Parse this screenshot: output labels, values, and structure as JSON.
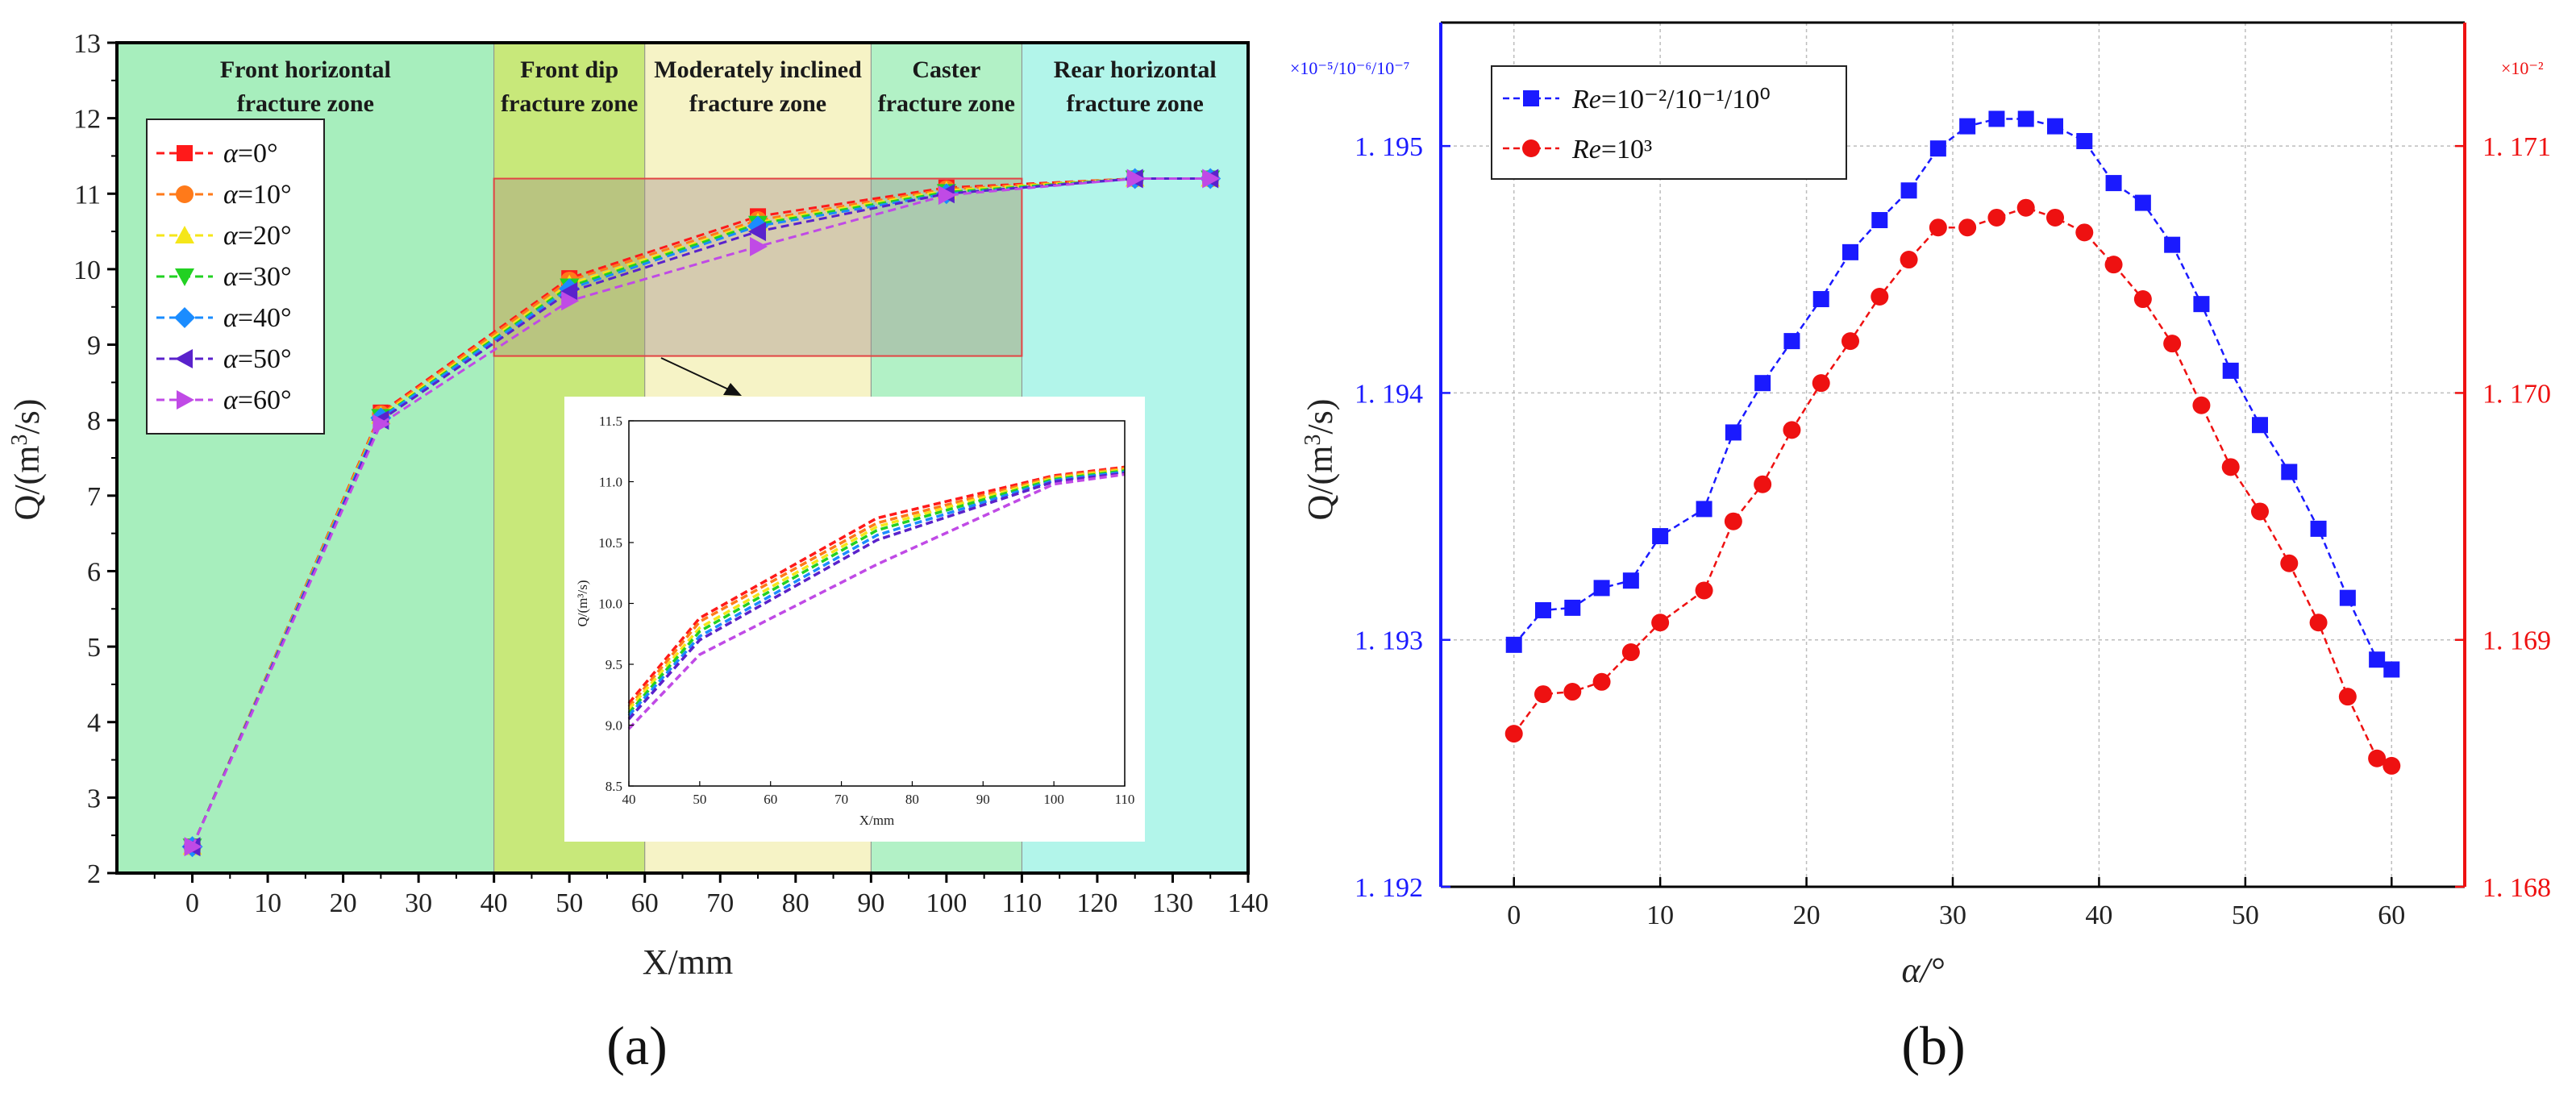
{
  "chart_data": [
    {
      "panel": "a",
      "type": "line",
      "panel_label": "(a)",
      "xlabel": "X/mm",
      "ylabel": "Q/(m³/s)",
      "xlim": [
        -10,
        140
      ],
      "ylim": [
        2,
        13
      ],
      "xticks": [
        0,
        10,
        20,
        30,
        40,
        50,
        60,
        70,
        80,
        90,
        100,
        110,
        120,
        130,
        140
      ],
      "yticks": [
        2,
        3,
        4,
        5,
        6,
        7,
        8,
        9,
        10,
        11,
        12,
        13
      ],
      "zones": [
        {
          "name": "Front horizontal fracture zone",
          "line1": "Front horizontal",
          "line2": "fracture zone",
          "x0": -10,
          "x1": 40,
          "color": "#a7eebd"
        },
        {
          "name": "Front dip fracture zone",
          "line1": "Front dip",
          "line2": "fracture zone",
          "x0": 40,
          "x1": 60,
          "color": "#c8e87a"
        },
        {
          "name": "Moderately inclined fracture zone",
          "line1": "Moderately inclined",
          "line2": "fracture zone",
          "x0": 60,
          "x1": 90,
          "color": "#f6f3c6"
        },
        {
          "name": "Caster fracture zone",
          "line1": "Caster",
          "line2": "fracture zone",
          "x0": 90,
          "x1": 110,
          "color": "#b2f1c6"
        },
        {
          "name": "Rear horizontal fracture zone",
          "line1": "Rear horizontal",
          "line2": "fracture zone",
          "x0": 110,
          "x1": 140,
          "color": "#b2f5ea"
        }
      ],
      "x": [
        0,
        25,
        50,
        75,
        100,
        125,
        135
      ],
      "series": [
        {
          "name": "α=0°",
          "prefix": "α",
          "suffix": "=0°",
          "color": "#ff1a1a",
          "marker": "square",
          "values": [
            2.35,
            8.1,
            9.88,
            10.7,
            11.08,
            11.2,
            11.2
          ]
        },
        {
          "name": "α=10°",
          "prefix": "α",
          "suffix": "=10°",
          "color": "#ff7a1a",
          "marker": "circle",
          "values": [
            2.35,
            8.08,
            9.85,
            10.65,
            11.06,
            11.2,
            11.2
          ]
        },
        {
          "name": "α=20°",
          "prefix": "α",
          "suffix": "=20°",
          "color": "#f5e61a",
          "marker": "triangle-up",
          "values": [
            2.35,
            8.06,
            9.8,
            10.62,
            11.04,
            11.2,
            11.2
          ]
        },
        {
          "name": "α=30°",
          "prefix": "α",
          "suffix": "=30°",
          "color": "#22d122",
          "marker": "triangle-down",
          "values": [
            2.35,
            8.04,
            9.77,
            10.6,
            11.02,
            11.2,
            11.2
          ]
        },
        {
          "name": "α=40°",
          "prefix": "α",
          "suffix": "=40°",
          "color": "#1a8cff",
          "marker": "diamond",
          "values": [
            2.35,
            8.03,
            9.74,
            10.57,
            11.0,
            11.2,
            11.2
          ]
        },
        {
          "name": "α=50°",
          "prefix": "α",
          "suffix": "=50°",
          "color": "#5a22cc",
          "marker": "triangle-left",
          "values": [
            2.35,
            8.0,
            9.7,
            10.5,
            11.0,
            11.2,
            11.2
          ]
        },
        {
          "name": "α=60°",
          "prefix": "α",
          "suffix": "=60°",
          "color": "#c04ae6",
          "marker": "triangle-right",
          "values": [
            2.35,
            7.95,
            9.58,
            10.3,
            10.98,
            11.2,
            11.2
          ]
        }
      ],
      "highlight_box": {
        "x0": 40,
        "x1": 110,
        "y0": 8.85,
        "y1": 11.2
      },
      "inset": {
        "xlabel": "X/mm",
        "ylabel": "Q/(m³/s)",
        "xlim": [
          40,
          110
        ],
        "ylim": [
          8.5,
          11.5
        ],
        "xticks": [
          40,
          50,
          60,
          70,
          80,
          90,
          100,
          110
        ],
        "yticks": [
          8.5,
          9.0,
          9.5,
          10.0,
          10.5,
          11.0,
          11.5
        ],
        "ytick_labels": [
          "8.5",
          "9.0",
          "9.5",
          "10.0",
          "10.5",
          "11.0",
          "11.5"
        ],
        "x": [
          40,
          50,
          75,
          100,
          110
        ],
        "series": [
          {
            "color": "#ff1a1a",
            "values": [
              9.18,
              9.88,
              10.7,
              11.05,
              11.12
            ]
          },
          {
            "color": "#ff7a1a",
            "values": [
              9.15,
              9.85,
              10.66,
              11.04,
              11.11
            ]
          },
          {
            "color": "#f5e61a",
            "values": [
              9.13,
              9.8,
              10.63,
              11.03,
              11.1
            ]
          },
          {
            "color": "#22d122",
            "values": [
              9.1,
              9.77,
              10.6,
              11.02,
              11.09
            ]
          },
          {
            "color": "#1a8cff",
            "values": [
              9.08,
              9.73,
              10.56,
              11.01,
              11.08
            ]
          },
          {
            "color": "#5a22cc",
            "values": [
              9.05,
              9.7,
              10.52,
              11.0,
              11.07
            ]
          },
          {
            "color": "#c04ae6",
            "values": [
              8.97,
              9.58,
              10.32,
              10.98,
              11.06
            ]
          }
        ]
      }
    },
    {
      "panel": "b",
      "type": "scatter",
      "panel_label": "(b)",
      "xlabel": "α/°",
      "ylabel": "Q/(m³/s)",
      "xlim": [
        -5,
        65
      ],
      "xticks": [
        0,
        10,
        20,
        30,
        40,
        50,
        60
      ],
      "left_axis": {
        "ylim": [
          1.192,
          1.1955
        ],
        "yticks": [
          1.192,
          1.193,
          1.194,
          1.195
        ],
        "ytick_labels": [
          "1. 192",
          "1. 193",
          "1. 194",
          "1. 195"
        ],
        "multiplier": "×10⁻⁵/10⁻⁶/10⁻⁷",
        "color": "#1a1aff"
      },
      "right_axis": {
        "ylim": [
          1.168,
          1.1715
        ],
        "yticks": [
          1.168,
          1.169,
          1.17,
          1.171
        ],
        "ytick_labels": [
          "1. 168",
          "1. 169",
          "1. 170",
          "1. 171"
        ],
        "multiplier": "×10⁻²",
        "color": "#ee1111"
      },
      "x": [
        0,
        2,
        4,
        6,
        8,
        10,
        13,
        15,
        17,
        19,
        21,
        23,
        25,
        27,
        29,
        31,
        33,
        35,
        37,
        39,
        41,
        43,
        45,
        47,
        49,
        51,
        53,
        55,
        57,
        59,
        60
      ],
      "series": [
        {
          "name": "Re=10⁻²/10⁻¹/10⁰",
          "legend_italic": "Re",
          "legend_rest": "=10⁻²/10⁻¹/10⁰",
          "axis": "left",
          "color": "#1a1aff",
          "marker": "square",
          "values": [
            1.19298,
            1.19312,
            1.19313,
            1.19321,
            1.19324,
            1.19342,
            1.19353,
            1.19384,
            1.19404,
            1.19421,
            1.19438,
            1.19457,
            1.1947,
            1.19482,
            1.19499,
            1.19508,
            1.19511,
            1.19511,
            1.19508,
            1.19502,
            1.19485,
            1.19477,
            1.1946,
            1.19436,
            1.19409,
            1.19387,
            1.19368,
            1.19345,
            1.19317,
            1.19292,
            1.19288
          ]
        },
        {
          "name": "Re=10³",
          "legend_italic": "Re",
          "legend_rest": "=10³",
          "axis": "right",
          "color": "#ee1111",
          "marker": "circle",
          "values": [
            1.16862,
            1.16878,
            1.16879,
            1.16883,
            1.16895,
            1.16907,
            1.1692,
            1.16948,
            1.16963,
            1.16985,
            1.17004,
            1.17021,
            1.17039,
            1.17054,
            1.17067,
            1.17067,
            1.17071,
            1.17075,
            1.17071,
            1.17065,
            1.17052,
            1.17038,
            1.1702,
            1.16995,
            1.1697,
            1.16952,
            1.16931,
            1.16907,
            1.16877,
            1.16852,
            1.16849
          ]
        }
      ]
    }
  ]
}
